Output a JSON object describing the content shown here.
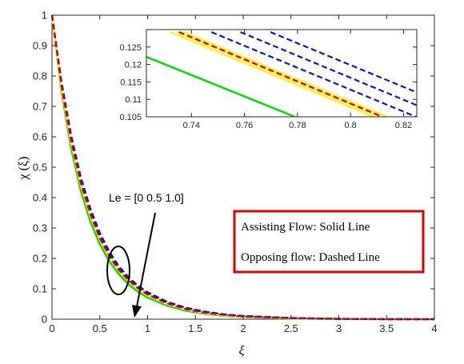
{
  "chart_data": {
    "type": "line",
    "xlabel": "ξ",
    "ylabel": "χ (ξ)",
    "xlim": [
      0,
      4
    ],
    "ylim": [
      0,
      1
    ],
    "xticks": [
      "0",
      "0.5",
      "1",
      "1.5",
      "2",
      "2.5",
      "3",
      "3.5",
      "4"
    ],
    "yticks": [
      "0",
      "0.1",
      "0.2",
      "0.3",
      "0.4",
      "0.5",
      "0.6",
      "0.7",
      "0.8",
      "0.9",
      "1"
    ],
    "grid": false,
    "legend_box": {
      "line1": "Assisting Flow:  Solid Line",
      "line2": "Opposing flow: Dashed Line",
      "border_color": "#e00000"
    },
    "annotation": {
      "text": "Le = [0  0.5  1.0]"
    },
    "series_colors": {
      "green": "#00dd00",
      "yellow": "#ffee33",
      "red": "#dd0000",
      "blue": "#1111dd"
    },
    "series": [
      {
        "style": "solid",
        "color": "green",
        "x": [
          0,
          0.1,
          0.2,
          0.3,
          0.4,
          0.5,
          0.6,
          0.7,
          0.8,
          0.9,
          1.0,
          1.2,
          1.4,
          1.6,
          1.8,
          2.0,
          2.5,
          3.0,
          3.5,
          4.0
        ],
        "y": [
          1.0,
          0.748,
          0.562,
          0.425,
          0.323,
          0.247,
          0.19,
          0.148,
          0.115,
          0.09,
          0.071,
          0.045,
          0.028,
          0.018,
          0.011,
          0.007,
          0.002,
          0.001,
          0.0,
          0.0
        ]
      },
      {
        "style": "solid",
        "color": "yellow",
        "x": [
          0,
          0.1,
          0.2,
          0.3,
          0.4,
          0.5,
          0.6,
          0.7,
          0.8,
          0.9,
          1.0,
          1.2,
          1.4,
          1.6,
          1.8,
          2.0,
          2.5,
          3.0,
          3.5,
          4.0
        ],
        "y": [
          1.0,
          0.76,
          0.58,
          0.443,
          0.34,
          0.262,
          0.203,
          0.158,
          0.125,
          0.098,
          0.078,
          0.05,
          0.032,
          0.02,
          0.013,
          0.008,
          0.003,
          0.001,
          0.0,
          0.0
        ]
      },
      {
        "style": "solid",
        "color": "yellow",
        "x": [
          0,
          0.1,
          0.2,
          0.3,
          0.4,
          0.5,
          0.6,
          0.7,
          0.8,
          0.9,
          1.0,
          1.2,
          1.4,
          1.6,
          1.8,
          2.0,
          2.5,
          3.0,
          3.5,
          4.0
        ],
        "y": [
          1.0,
          0.763,
          0.584,
          0.447,
          0.344,
          0.265,
          0.206,
          0.16,
          0.127,
          0.1,
          0.08,
          0.051,
          0.033,
          0.021,
          0.013,
          0.008,
          0.003,
          0.001,
          0.0,
          0.0
        ]
      },
      {
        "style": "solid",
        "color": "yellow",
        "x": [
          0,
          0.1,
          0.2,
          0.3,
          0.4,
          0.5,
          0.6,
          0.7,
          0.8,
          0.9,
          1.0,
          1.2,
          1.4,
          1.6,
          1.8,
          2.0,
          2.5,
          3.0,
          3.5,
          4.0
        ],
        "y": [
          1.0,
          0.766,
          0.588,
          0.451,
          0.348,
          0.268,
          0.209,
          0.162,
          0.129,
          0.102,
          0.082,
          0.052,
          0.034,
          0.022,
          0.014,
          0.009,
          0.003,
          0.001,
          0.0,
          0.0
        ]
      },
      {
        "style": "dashed",
        "color": "red",
        "x": [
          0,
          0.1,
          0.2,
          0.3,
          0.4,
          0.5,
          0.6,
          0.7,
          0.8,
          0.9,
          1.0,
          1.2,
          1.4,
          1.6,
          1.8,
          2.0,
          2.5,
          3.0,
          3.5,
          4.0
        ],
        "y": [
          1.0,
          0.765,
          0.586,
          0.449,
          0.346,
          0.266,
          0.207,
          0.161,
          0.128,
          0.101,
          0.081,
          0.052,
          0.033,
          0.021,
          0.014,
          0.009,
          0.003,
          0.001,
          0.0,
          0.0
        ]
      },
      {
        "style": "dashed",
        "color": "blue",
        "x": [
          0,
          0.1,
          0.2,
          0.3,
          0.4,
          0.5,
          0.6,
          0.7,
          0.8,
          0.9,
          1.0,
          1.2,
          1.4,
          1.6,
          1.8,
          2.0,
          2.5,
          3.0,
          3.5,
          4.0
        ],
        "y": [
          1.0,
          0.772,
          0.596,
          0.46,
          0.356,
          0.276,
          0.215,
          0.168,
          0.133,
          0.106,
          0.085,
          0.055,
          0.036,
          0.023,
          0.015,
          0.01,
          0.004,
          0.001,
          0.0,
          0.0
        ]
      },
      {
        "style": "dashed",
        "color": "blue",
        "x": [
          0,
          0.1,
          0.2,
          0.3,
          0.4,
          0.5,
          0.6,
          0.7,
          0.8,
          0.9,
          1.0,
          1.2,
          1.4,
          1.6,
          1.8,
          2.0,
          2.5,
          3.0,
          3.5,
          4.0
        ],
        "y": [
          1.0,
          0.776,
          0.601,
          0.465,
          0.361,
          0.28,
          0.219,
          0.171,
          0.136,
          0.108,
          0.087,
          0.057,
          0.037,
          0.024,
          0.016,
          0.01,
          0.004,
          0.001,
          0.0,
          0.0
        ]
      },
      {
        "style": "dashed",
        "color": "blue",
        "x": [
          0,
          0.1,
          0.2,
          0.3,
          0.4,
          0.5,
          0.6,
          0.7,
          0.8,
          0.9,
          1.0,
          1.2,
          1.4,
          1.6,
          1.8,
          2.0,
          2.5,
          3.0,
          3.5,
          4.0
        ],
        "y": [
          1.0,
          0.78,
          0.606,
          0.47,
          0.366,
          0.284,
          0.223,
          0.174,
          0.139,
          0.11,
          0.089,
          0.058,
          0.038,
          0.025,
          0.016,
          0.011,
          0.004,
          0.001,
          0.0,
          0.0
        ]
      }
    ],
    "inset": {
      "xlim": [
        0.723,
        0.825
      ],
      "ylim": [
        0.105,
        0.13
      ],
      "xticks": [
        "0.74",
        "0.76",
        "0.78",
        "0.8",
        "0.82"
      ],
      "yticks": [
        "0.105",
        "0.11",
        "0.115",
        "0.12",
        "0.125"
      ],
      "series": [
        {
          "style": "solid",
          "color": "green",
          "x": [
            0.723,
            0.779
          ],
          "y": [
            0.1222,
            0.105
          ]
        },
        {
          "style": "solid",
          "color": "yellow",
          "x": [
            0.732,
            0.8087
          ],
          "y": [
            0.1293,
            0.105
          ]
        },
        {
          "style": "solid",
          "color": "yellow",
          "x": [
            0.7345,
            0.8112
          ],
          "y": [
            0.1293,
            0.105
          ]
        },
        {
          "style": "solid",
          "color": "yellow",
          "x": [
            0.737,
            0.8137
          ],
          "y": [
            0.1293,
            0.105
          ]
        },
        {
          "style": "dashed",
          "color": "red",
          "x": [
            0.7353,
            0.812
          ],
          "y": [
            0.1293,
            0.105
          ]
        },
        {
          "style": "dashed",
          "color": "blue",
          "x": [
            0.7475,
            0.825
          ],
          "y": [
            0.1293,
            0.1049
          ]
        },
        {
          "style": "dashed",
          "color": "blue",
          "x": [
            0.7585,
            0.825
          ],
          "y": [
            0.1293,
            0.1083
          ]
        },
        {
          "style": "dashed",
          "color": "blue",
          "x": [
            0.7698,
            0.825
          ],
          "y": [
            0.1293,
            0.112
          ]
        }
      ]
    }
  }
}
